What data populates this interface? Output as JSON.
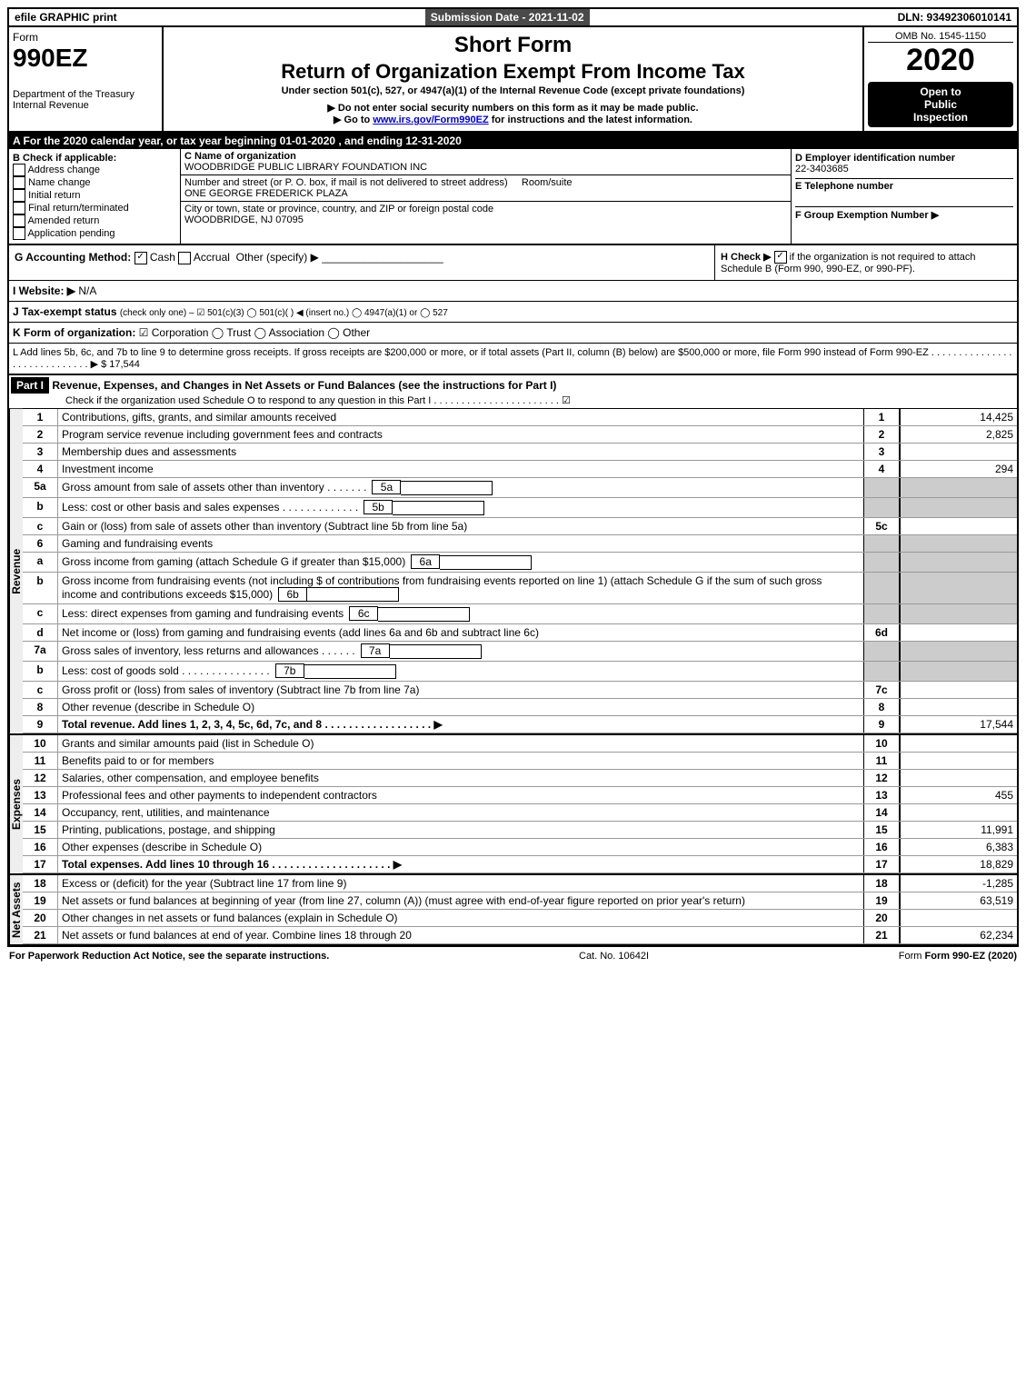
{
  "topbar": {
    "efile": "efile GRAPHIC print",
    "submission_label": "Submission Date - 2021-11-02",
    "dln": "DLN: 93492306010141"
  },
  "header": {
    "form_word": "Form",
    "form_num": "990EZ",
    "dept": "Department of the Treasury",
    "irs": "Internal Revenue",
    "omb": "OMB No. 1545-1150",
    "title1": "Short Form",
    "title2": "Return of Organization Exempt From Income Tax",
    "sub1": "Under section 501(c), 527, or 4947(a)(1) of the Internal Revenue Code (except private foundations)",
    "sub2": "▶ Do not enter social security numbers on this form as it may be made public.",
    "sub3_pre": "▶ Go to ",
    "sub3_link": "www.irs.gov/Form990EZ",
    "sub3_post": " for instructions and the latest information.",
    "year": "2020",
    "open1": "Open to",
    "open2": "Public",
    "open3": "Inspection"
  },
  "period": {
    "text": "A For the 2020 calendar year, or tax year beginning 01-01-2020 , and ending 12-31-2020"
  },
  "checkB": {
    "label": "B  Check if applicable:",
    "opts": [
      "Address change",
      "Name change",
      "Initial return",
      "Final return/terminated",
      "Amended return",
      "Application pending"
    ]
  },
  "org": {
    "c_label": "C Name of organization",
    "name": "WOODBRIDGE PUBLIC LIBRARY FOUNDATION INC",
    "addr_label": "Number and street (or P. O. box, if mail is not delivered to street address)",
    "room_label": "Room/suite",
    "addr": "ONE GEORGE FREDERICK PLAZA",
    "city_label": "City or town, state or province, country, and ZIP or foreign postal code",
    "city": "WOODBRIDGE, NJ 07095"
  },
  "right": {
    "d_label": "D Employer identification number",
    "ein": "22-3403685",
    "e_label": "E Telephone number",
    "f_label": "F Group Exemption Number  ▶"
  },
  "g": {
    "label": "G Accounting Method:",
    "cash": "Cash",
    "accrual": "Accrual",
    "other": "Other (specify) ▶"
  },
  "h": {
    "label": "H  Check ▶",
    "text": " if the organization is not required to attach Schedule B (Form 990, 990-EZ, or 990-PF)."
  },
  "i": {
    "label": "I Website: ▶",
    "val": "N/A"
  },
  "j": {
    "label": "J Tax-exempt status",
    "rest": "(check only one) – ☑ 501(c)(3)  ◯ 501(c)(  ) ◀ (insert no.)  ◯ 4947(a)(1) or  ◯ 527"
  },
  "k": {
    "label": "K Form of organization:",
    "rest": "☑ Corporation  ◯ Trust  ◯ Association  ◯ Other"
  },
  "l": {
    "text": "L Add lines 5b, 6c, and 7b to line 9 to determine gross receipts. If gross receipts are $200,000 or more, or if total assets (Part II, column (B) below) are $500,000 or more, file Form 990 instead of Form 990-EZ . . . . . . . . . . . . . . . . . . . . . . . . . . . . . ▶ $ 17,544"
  },
  "part1": {
    "label": "Part I",
    "title": "Revenue, Expenses, and Changes in Net Assets or Fund Balances (see the instructions for Part I)",
    "note": "Check if the organization used Schedule O to respond to any question in this Part I . . . . . . . . . . . . . . . . . . . . . . . ☑"
  },
  "sections": {
    "revenue_label": "Revenue",
    "expenses_label": "Expenses",
    "netassets_label": "Net Assets"
  },
  "lines": [
    {
      "n": "1",
      "desc": "Contributions, gifts, grants, and similar amounts received",
      "box": "1",
      "val": "14,425"
    },
    {
      "n": "2",
      "desc": "Program service revenue including government fees and contracts",
      "box": "2",
      "val": "2,825"
    },
    {
      "n": "3",
      "desc": "Membership dues and assessments",
      "box": "3",
      "val": ""
    },
    {
      "n": "4",
      "desc": "Investment income",
      "box": "4",
      "val": "294"
    },
    {
      "n": "5a",
      "desc": "Gross amount from sale of assets other than inventory . . . . . . .",
      "inline": "5a"
    },
    {
      "n": "b",
      "desc": "Less: cost or other basis and sales expenses . . . . . . . . . . . . .",
      "inline": "5b"
    },
    {
      "n": "c",
      "desc": "Gain or (loss) from sale of assets other than inventory (Subtract line 5b from line 5a)",
      "box": "5c",
      "val": ""
    },
    {
      "n": "6",
      "desc": "Gaming and fundraising events"
    },
    {
      "n": "a",
      "desc": "Gross income from gaming (attach Schedule G if greater than $15,000)",
      "inline": "6a"
    },
    {
      "n": "b",
      "desc": "Gross income from fundraising events (not including $            of contributions from fundraising events reported on line 1) (attach Schedule G if the sum of such gross income and contributions exceeds $15,000)",
      "inline": "6b"
    },
    {
      "n": "c",
      "desc": "Less: direct expenses from gaming and fundraising events",
      "inline": "6c"
    },
    {
      "n": "d",
      "desc": "Net income or (loss) from gaming and fundraising events (add lines 6a and 6b and subtract line 6c)",
      "box": "6d",
      "val": ""
    },
    {
      "n": "7a",
      "desc": "Gross sales of inventory, less returns and allowances . . . . . .",
      "inline": "7a"
    },
    {
      "n": "b",
      "desc": "Less: cost of goods sold       . . . . . . . . . . . . . . .",
      "inline": "7b"
    },
    {
      "n": "c",
      "desc": "Gross profit or (loss) from sales of inventory (Subtract line 7b from line 7a)",
      "box": "7c",
      "val": ""
    },
    {
      "n": "8",
      "desc": "Other revenue (describe in Schedule O)",
      "box": "8",
      "val": ""
    },
    {
      "n": "9",
      "desc": "Total revenue. Add lines 1, 2, 3, 4, 5c, 6d, 7c, and 8  . . . . . . . . . . . . . . . . . . ▶",
      "box": "9",
      "val": "17,544",
      "bold": true
    }
  ],
  "exp_lines": [
    {
      "n": "10",
      "desc": "Grants and similar amounts paid (list in Schedule O)",
      "box": "10",
      "val": ""
    },
    {
      "n": "11",
      "desc": "Benefits paid to or for members",
      "box": "11",
      "val": ""
    },
    {
      "n": "12",
      "desc": "Salaries, other compensation, and employee benefits",
      "box": "12",
      "val": ""
    },
    {
      "n": "13",
      "desc": "Professional fees and other payments to independent contractors",
      "box": "13",
      "val": "455"
    },
    {
      "n": "14",
      "desc": "Occupancy, rent, utilities, and maintenance",
      "box": "14",
      "val": ""
    },
    {
      "n": "15",
      "desc": "Printing, publications, postage, and shipping",
      "box": "15",
      "val": "11,991"
    },
    {
      "n": "16",
      "desc": "Other expenses (describe in Schedule O)",
      "box": "16",
      "val": "6,383"
    },
    {
      "n": "17",
      "desc": "Total expenses. Add lines 10 through 16     . . . . . . . . . . . . . . . . . . . . ▶",
      "box": "17",
      "val": "18,829",
      "bold": true
    }
  ],
  "net_lines": [
    {
      "n": "18",
      "desc": "Excess or (deficit) for the year (Subtract line 17 from line 9)",
      "box": "18",
      "val": "-1,285"
    },
    {
      "n": "19",
      "desc": "Net assets or fund balances at beginning of year (from line 27, column (A)) (must agree with end-of-year figure reported on prior year's return)",
      "box": "19",
      "val": "63,519"
    },
    {
      "n": "20",
      "desc": "Other changes in net assets or fund balances (explain in Schedule O)",
      "box": "20",
      "val": ""
    },
    {
      "n": "21",
      "desc": "Net assets or fund balances at end of year. Combine lines 18 through 20",
      "box": "21",
      "val": "62,234"
    }
  ],
  "footer": {
    "left": "For Paperwork Reduction Act Notice, see the separate instructions.",
    "center": "Cat. No. 10642I",
    "right": "Form 990-EZ (2020)"
  }
}
